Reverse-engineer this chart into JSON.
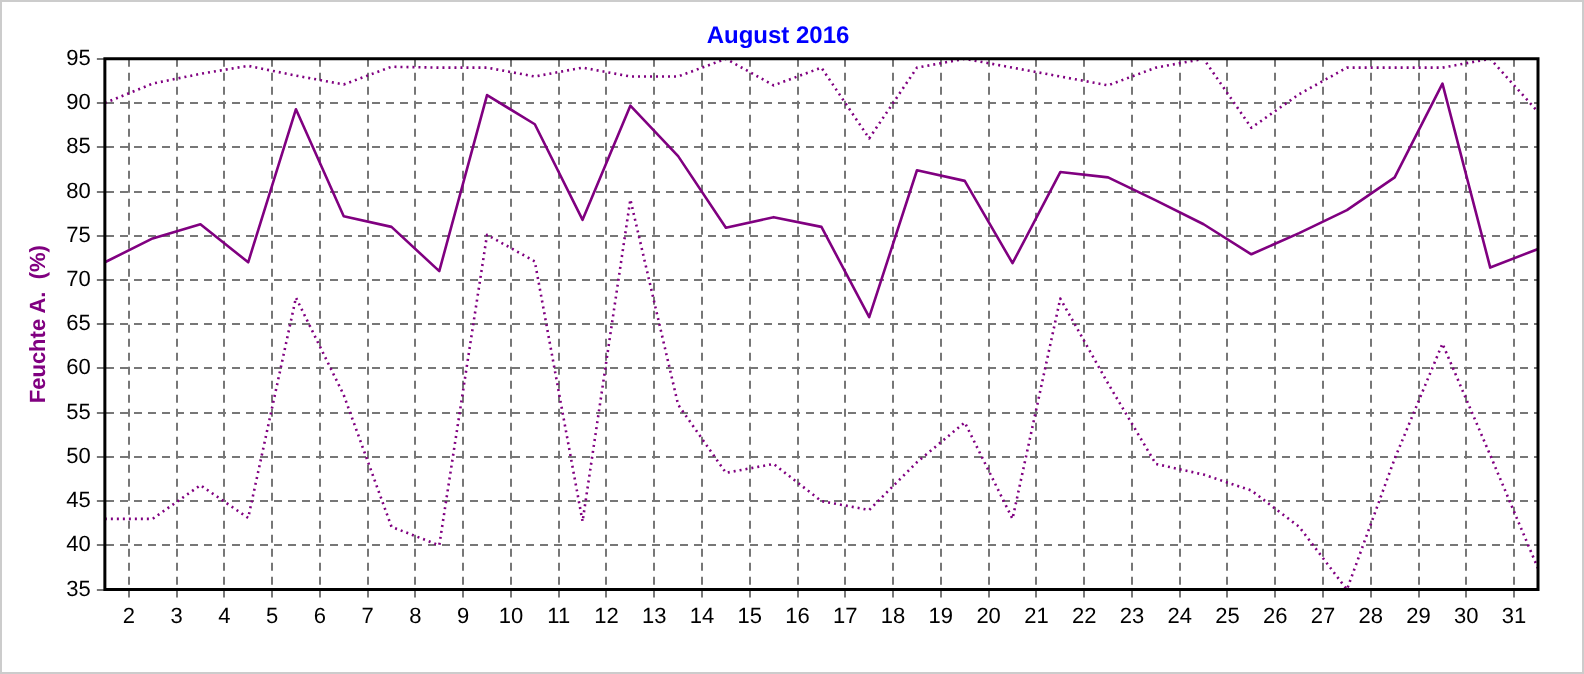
{
  "chart_data": {
    "type": "line",
    "title": "August 2016",
    "ylabel": "Feuchte A.  (%)",
    "x": [
      1.5,
      2.5,
      3.5,
      4.5,
      5.5,
      6.5,
      7.5,
      8.5,
      9.5,
      10.5,
      11.5,
      12.5,
      13.5,
      14.5,
      15.5,
      16.5,
      17.5,
      18.5,
      19.5,
      20.5,
      21.5,
      22.5,
      23.5,
      24.5,
      25.5,
      26.5,
      27.5,
      28.5,
      29.5,
      30.5,
      31.5
    ],
    "series": [
      {
        "color": "#800080",
        "line_style": "dotted",
        "values": [
          90,
          92.2,
          93.3,
          94.2,
          93.1,
          92.1,
          94.1,
          94,
          94,
          93,
          94,
          93,
          93,
          95,
          92,
          94,
          86,
          94,
          95,
          94,
          93,
          92,
          94,
          95,
          87.2,
          91,
          94,
          94,
          94,
          95,
          89
        ]
      },
      {
        "color": "#800080",
        "line_style": "solid",
        "values": [
          72,
          74.7,
          76.3,
          72,
          89.3,
          77.2,
          76,
          71,
          90.9,
          87.6,
          76.8,
          89.7,
          84,
          75.9,
          77.1,
          76,
          65.8,
          82.4,
          81.2,
          71.9,
          82.2,
          81.6,
          79,
          76.3,
          72.9,
          75.3,
          77.9,
          81.6,
          92.2,
          71.4,
          73.5
        ]
      },
      {
        "color": "#800080",
        "line_style": "dotted",
        "values": [
          43,
          43,
          46.8,
          43.1,
          68,
          57,
          42.1,
          40,
          75.1,
          72.1,
          42.7,
          79.1,
          55.9,
          48.2,
          49.2,
          45,
          44,
          49.4,
          53.9,
          43,
          67.9,
          58.3,
          49.2,
          48,
          46.2,
          42.1,
          35,
          49.8,
          62.8,
          50.2,
          37.4
        ]
      }
    ],
    "xlim": [
      1.5,
      31.5
    ],
    "xticks": [
      2,
      3,
      4,
      5,
      6,
      7,
      8,
      9,
      10,
      11,
      12,
      13,
      14,
      15,
      16,
      17,
      18,
      19,
      20,
      21,
      22,
      23,
      24,
      25,
      26,
      27,
      28,
      29,
      30,
      31
    ],
    "ylim": [
      35,
      95
    ],
    "yticks": [
      35,
      40,
      45,
      50,
      55,
      60,
      65,
      70,
      75,
      80,
      85,
      90,
      95
    ],
    "grid": true,
    "legend": false,
    "marker": "none"
  }
}
